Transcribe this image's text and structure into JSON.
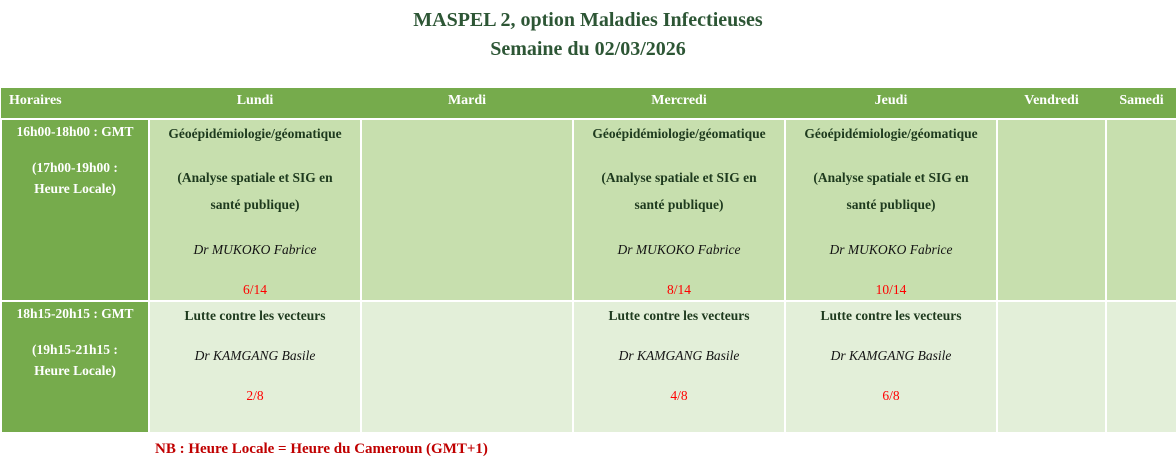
{
  "title": {
    "line1": "MASPEL 2, option Maladies Infectieuses",
    "line2": "Semaine du 02/03/2026"
  },
  "table": {
    "columns": [
      "Horaires",
      "Lundi",
      "Mardi",
      "Mercredi",
      "Jeudi",
      "Vendredi",
      "Samedi"
    ],
    "rows": [
      {
        "time_gmt": "16h00-18h00 : GMT",
        "time_local_1": "(17h00-19h00 :",
        "time_local_2": "Heure Locale)",
        "cells": [
          {
            "course": "Géoépidémiologie/géomatique",
            "detail_1": "(Analyse spatiale et SIG en",
            "detail_2": "santé publique)",
            "lecturer": "Dr MUKOKO Fabrice",
            "count": "6/14"
          },
          {},
          {
            "course": "Géoépidémiologie/géomatique",
            "detail_1": "(Analyse spatiale et SIG en",
            "detail_2": "santé publique)",
            "lecturer": "Dr MUKOKO Fabrice",
            "count": "8/14"
          },
          {
            "course": "Géoépidémiologie/géomatique",
            "detail_1": "(Analyse spatiale et SIG en",
            "detail_2": "santé publique)",
            "lecturer": "Dr MUKOKO Fabrice",
            "count": "10/14"
          },
          {},
          {}
        ]
      },
      {
        "time_gmt": "18h15-20h15 : GMT",
        "time_local_1": "(19h15-21h15 :",
        "time_local_2": "Heure Locale)",
        "cells": [
          {
            "course": "Lutte contre les vecteurs",
            "lecturer": "Dr KAMGANG Basile",
            "count": "2/8"
          },
          {},
          {
            "course": "Lutte contre les vecteurs",
            "lecturer": "Dr KAMGANG Basile",
            "count": "4/8"
          },
          {
            "course": "Lutte contre les vecteurs",
            "lecturer": "Dr KAMGANG Basile",
            "count": "6/8"
          },
          {},
          {}
        ]
      }
    ]
  },
  "footer": {
    "note": "NB : Heure Locale = Heure du Cameroun (GMT+1)"
  },
  "colors": {
    "header_green": "#76ab4c",
    "row1_cell_bg": "#c7dfae",
    "row2_cell_bg": "#e3efd9",
    "title_green": "#2d5635",
    "course_dark_green": "#1e3a1e",
    "count_red": "#ff0000",
    "note_red": "#c00000"
  }
}
